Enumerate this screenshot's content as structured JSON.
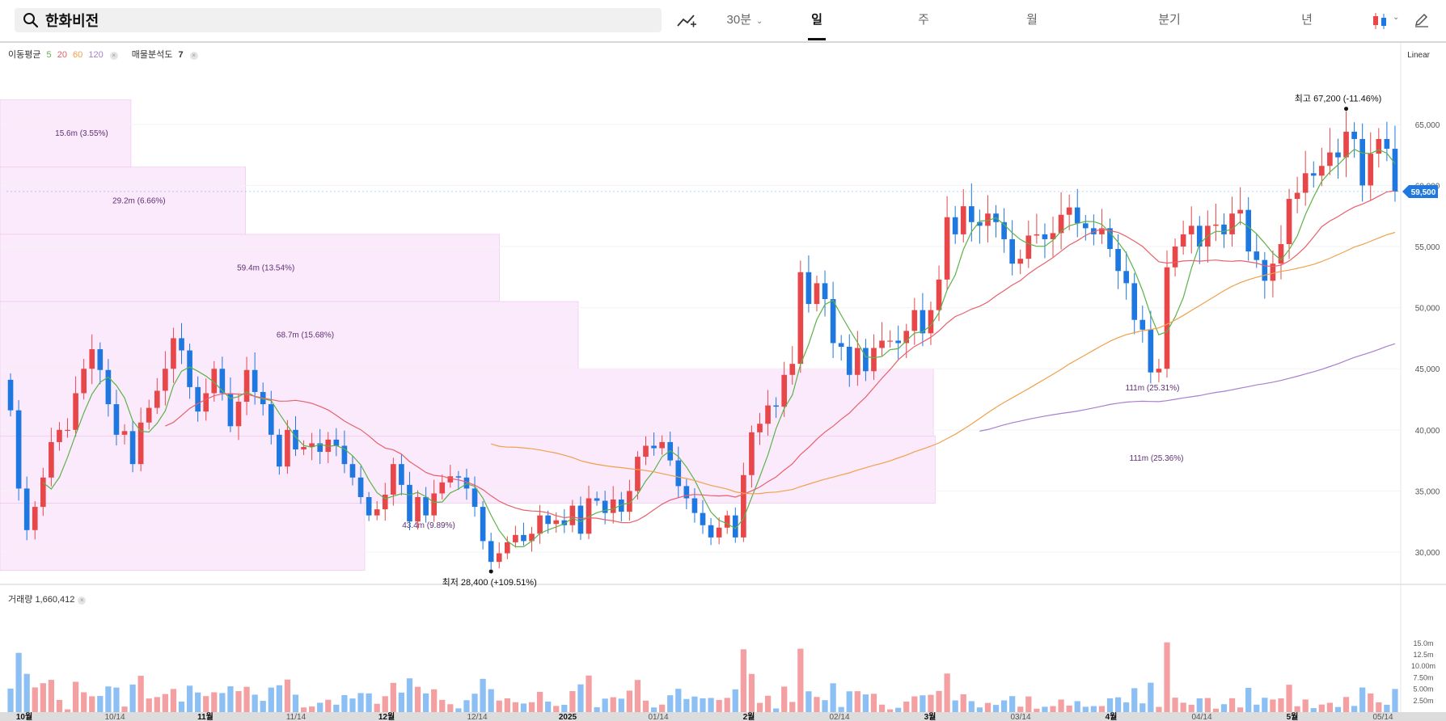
{
  "search": {
    "value": "한화비전"
  },
  "toolbar": {
    "periods": [
      {
        "label": "30분",
        "active": false,
        "dropdown": true
      },
      {
        "label": "일",
        "active": true
      },
      {
        "label": "주",
        "active": false
      },
      {
        "label": "월",
        "active": false
      },
      {
        "label": "분기",
        "active": false
      },
      {
        "label": "년",
        "active": false
      }
    ]
  },
  "legend": {
    "ma_label": "이동평균",
    "ma_periods": [
      "5",
      "20",
      "60",
      "120"
    ],
    "ma_colors": [
      "#5bb349",
      "#e8606a",
      "#f0a04b",
      "#a87fd0"
    ],
    "volume_profile_label": "매물분석도",
    "volume_profile_value": "7",
    "volume_label": "거래량",
    "volume_value": "1,660,412"
  },
  "scale_mode": "Linear",
  "colors": {
    "up": "#e8474a",
    "down": "#1f77e0",
    "vol_up": "#f4a0a2",
    "vol_down": "#8cc0f4",
    "profile": "#fbeafb"
  },
  "chart_data": {
    "type": "candlestick",
    "price_axis_ticks": [
      "65,000",
      "60,000",
      "55,000",
      "50,000",
      "45,000",
      "40,000",
      "35,000",
      "30,000"
    ],
    "volume_axis_ticks": [
      "15.0m",
      "12.5m",
      "10.00m",
      "7.50m",
      "5.00m",
      "2.50m"
    ],
    "x_labels": [
      {
        "label": "10월",
        "bold": true
      },
      {
        "label": "10/14",
        "bold": false
      },
      {
        "label": "11월",
        "bold": true
      },
      {
        "label": "11/14",
        "bold": false
      },
      {
        "label": "12월",
        "bold": true
      },
      {
        "label": "12/14",
        "bold": false
      },
      {
        "label": "2025",
        "bold": true
      },
      {
        "label": "01/14",
        "bold": false
      },
      {
        "label": "2월",
        "bold": true
      },
      {
        "label": "02/14",
        "bold": false
      },
      {
        "label": "3월",
        "bold": true
      },
      {
        "label": "03/14",
        "bold": false
      },
      {
        "label": "4월",
        "bold": true
      },
      {
        "label": "04/14",
        "bold": false
      },
      {
        "label": "5월",
        "bold": true
      },
      {
        "label": "05/14",
        "bold": false
      }
    ],
    "current_price": "59,500",
    "high_marker": {
      "label": "최고",
      "value": "67,200",
      "change": "(-11.46%)"
    },
    "low_marker": {
      "label": "최저",
      "value": "28,400",
      "change": "(+109.51%)"
    },
    "volume_profile": [
      {
        "price_low": 61500,
        "price_high": 67000,
        "label": "15.6m (3.55%)"
      },
      {
        "price_low": 56000,
        "price_high": 61500,
        "label": "29.2m (6.66%)"
      },
      {
        "price_low": 50500,
        "price_high": 56000,
        "label": "59.4m (13.54%)"
      },
      {
        "price_low": 45000,
        "price_high": 50500,
        "label": "68.7m (15.68%)"
      },
      {
        "price_low": 39500,
        "price_high": 45000,
        "label": "111m (25.31%)"
      },
      {
        "price_low": 34000,
        "price_high": 39500,
        "label": "111m (25.36%)"
      },
      {
        "price_low": 28500,
        "price_high": 34000,
        "label": "43.4m (9.89%)"
      }
    ],
    "closes": [
      41600,
      35200,
      31800,
      33700,
      36100,
      39000,
      40000,
      40000,
      43000,
      45000,
      46600,
      44900,
      42100,
      39600,
      39900,
      37200,
      40600,
      41800,
      43200,
      45000,
      47500,
      46500,
      43500,
      41500,
      43000,
      45000,
      43000,
      40300,
      42300,
      44900,
      43100,
      42100,
      39600,
      37000,
      40000,
      38400,
      38600,
      38900,
      38200,
      39200,
      38700,
      37200,
      36100,
      34500,
      33000,
      33500,
      34700,
      37200,
      35500,
      32500,
      34500,
      33000,
      34800,
      35700,
      36200,
      36100,
      35200,
      33700,
      30900,
      29200,
      29900,
      30800,
      31400,
      30900,
      31500,
      33000,
      32300,
      32600,
      32200,
      33800,
      31500,
      34400,
      34200,
      33200,
      34300,
      33300,
      35000,
      37800,
      38700,
      38500,
      39000,
      37500,
      35400,
      34400,
      33200,
      32200,
      31200,
      32000,
      33000,
      31200,
      36300,
      39800,
      40500,
      42000,
      41900,
      44500,
      45400,
      52900,
      50300,
      52000,
      50700,
      47100,
      46800,
      44500,
      46700,
      44800,
      46700,
      47300,
      47300,
      47100,
      48100,
      49800,
      47900,
      49800,
      52300,
      57400,
      56000,
      58300,
      57000,
      56700,
      57700,
      57000,
      55600,
      53600,
      54000,
      55900,
      56000,
      55600,
      56100,
      57600,
      58200,
      56900,
      56500,
      56000,
      56500,
      54800,
      53000,
      52000,
      49000,
      48200,
      44700,
      45000,
      53300,
      55000,
      56000,
      56700,
      55000,
      56700,
      56800,
      56000,
      57700,
      58000,
      54600,
      53900,
      52200,
      53600,
      55200,
      58900,
      59400,
      61000,
      60800,
      61600,
      62700,
      62300,
      64400,
      63800,
      60000,
      62600,
      63800,
      63000,
      59500
    ],
    "current_close": 59500
  }
}
